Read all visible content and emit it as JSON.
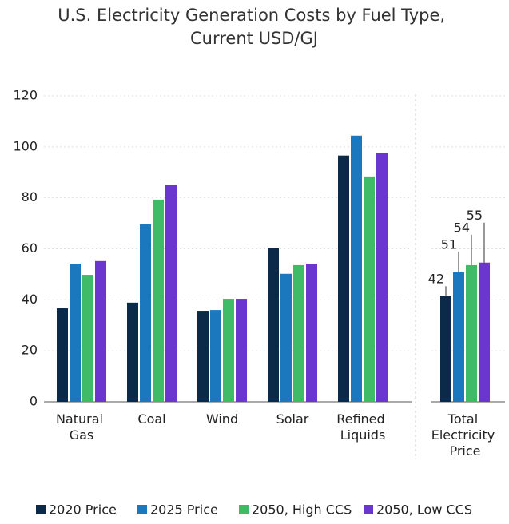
{
  "chart_data": {
    "type": "bar",
    "title": "U.S. Electricity Generation Costs by Fuel Type, Current USD/GJ",
    "categories": [
      "Natural Gas",
      "Coal",
      "Wind",
      "Solar",
      "Refined Liquids",
      "Total Electricity Price"
    ],
    "series": [
      {
        "name": "2020 Price",
        "color": "#0b2949",
        "values": [
          36.7,
          38.9,
          35.7,
          60.2,
          96.6,
          41.6
        ],
        "value_labels": [
          null,
          null,
          null,
          null,
          null,
          "42"
        ]
      },
      {
        "name": "2025 Price",
        "color": "#1b78bf",
        "values": [
          54.2,
          69.6,
          36.0,
          50.2,
          104.4,
          50.8
        ],
        "value_labels": [
          null,
          null,
          null,
          null,
          null,
          "51"
        ]
      },
      {
        "name": "2050, High CCS",
        "color": "#3fbb67",
        "values": [
          49.8,
          79.3,
          40.4,
          53.6,
          88.4,
          53.6
        ],
        "value_labels": [
          null,
          null,
          null,
          null,
          null,
          "54"
        ]
      },
      {
        "name": "2050, Low CCS",
        "color": "#6b36cf",
        "values": [
          55.2,
          85.0,
          40.4,
          54.2,
          97.5,
          54.6
        ],
        "value_labels": [
          null,
          null,
          null,
          null,
          null,
          "55"
        ]
      }
    ],
    "ylim": [
      0,
      120
    ],
    "yticks": [
      0,
      20,
      40,
      60,
      80,
      100,
      120
    ],
    "grid": true,
    "legend": "bottom"
  }
}
